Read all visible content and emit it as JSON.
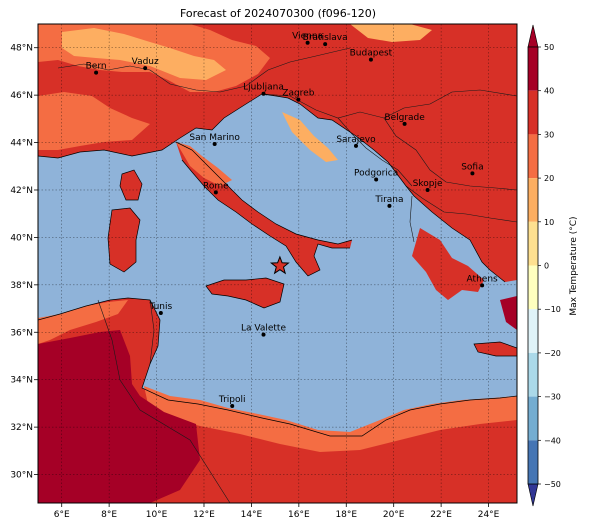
{
  "title": "Forecast of 2024070300 (f096-120)",
  "map": {
    "lon_range": [
      5,
      25.2
    ],
    "lat_range": [
      28.8,
      49
    ],
    "lon_ticks": [
      "6°E",
      "8°E",
      "10°E",
      "12°E",
      "14°E",
      "16°E",
      "18°E",
      "20°E",
      "22°E",
      "24°E"
    ],
    "lat_ticks": [
      "30°N",
      "32°N",
      "34°N",
      "36°N",
      "38°N",
      "40°N",
      "42°N",
      "44°N",
      "46°N",
      "48°N"
    ],
    "sea_color": "#8fb3d9",
    "cities": [
      {
        "name": "Vienna",
        "lon": 16.37,
        "lat": 48.21
      },
      {
        "name": "Bratislava",
        "lon": 17.11,
        "lat": 48.15
      },
      {
        "name": "Budapest",
        "lon": 19.04,
        "lat": 47.5
      },
      {
        "name": "Bern",
        "lon": 7.45,
        "lat": 46.95
      },
      {
        "name": "Vaduz",
        "lon": 9.52,
        "lat": 47.14
      },
      {
        "name": "Ljubljana",
        "lon": 14.51,
        "lat": 46.06
      },
      {
        "name": "Zagreb",
        "lon": 15.98,
        "lat": 45.81
      },
      {
        "name": "Belgrade",
        "lon": 20.46,
        "lat": 44.79
      },
      {
        "name": "San Marino",
        "lon": 12.45,
        "lat": 43.94
      },
      {
        "name": "Sarajevo",
        "lon": 18.41,
        "lat": 43.86
      },
      {
        "name": "Rome",
        "lon": 12.5,
        "lat": 41.9
      },
      {
        "name": "Podgorica",
        "lon": 19.26,
        "lat": 42.44
      },
      {
        "name": "Tirana",
        "lon": 19.82,
        "lat": 41.33
      },
      {
        "name": "Skopje",
        "lon": 21.43,
        "lat": 42.0
      },
      {
        "name": "Sofia",
        "lon": 23.32,
        "lat": 42.7
      },
      {
        "name": "Athens",
        "lon": 23.73,
        "lat": 37.98
      },
      {
        "name": "Tunis",
        "lon": 10.18,
        "lat": 36.81
      },
      {
        "name": "La Valette",
        "lon": 14.51,
        "lat": 35.9
      },
      {
        "name": "Tripoli",
        "lon": 13.19,
        "lat": 32.89
      }
    ],
    "marker": {
      "symbol": "star",
      "lon": 15.2,
      "lat": 38.8,
      "color": "#d73027"
    }
  },
  "colorbar": {
    "label": "Max Temperature (°C)",
    "range": [
      -50,
      50
    ],
    "ticks": [
      "50",
      "40",
      "30",
      "20",
      "10",
      "0",
      "−10",
      "−20",
      "−30",
      "−40",
      "−50"
    ],
    "colors": [
      "#313695",
      "#4575b4",
      "#74add1",
      "#abd9e9",
      "#e0f3f8",
      "#ffffbf",
      "#fee090",
      "#fdae61",
      "#f46d43",
      "#d73027",
      "#a50026"
    ]
  }
}
